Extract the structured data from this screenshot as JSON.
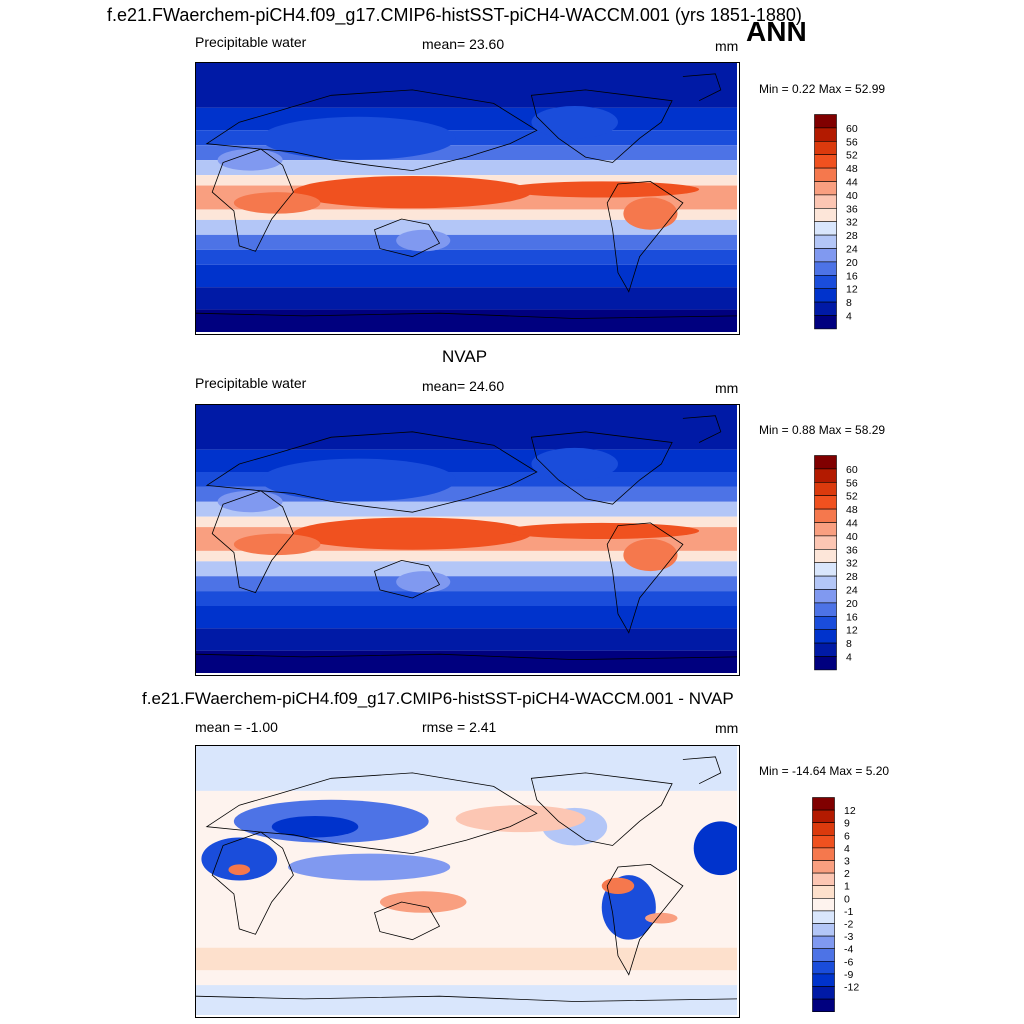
{
  "header": {
    "title": "f.e21.FWaerchem-piCH4.f09_g17.CMIP6-histSST-piCH4-WACCM.001 (yrs 1851-1880)",
    "season": "ANN"
  },
  "colors": {
    "scale": [
      "#00007f",
      "#001aa6",
      "#0033cc",
      "#1a4ddb",
      "#4d73e6",
      "#8099f0",
      "#b3c6f7",
      "#d9e6fc",
      "#fde6d9",
      "#fcc6b3",
      "#f99f80",
      "#f5784d",
      "#f0511f",
      "#db3a0d",
      "#b31a00",
      "#800000"
    ],
    "diff_scale": [
      "#00007f",
      "#001aa6",
      "#0033cc",
      "#1a4ddb",
      "#4d73e6",
      "#8099f0",
      "#b3c6f7",
      "#d9e6fc",
      "#fef3ee",
      "#fde0cc",
      "#fcc6b3",
      "#f99f80",
      "#f5784d",
      "#f0511f",
      "#db3a0d",
      "#b31a00",
      "#800000"
    ]
  },
  "panels": [
    {
      "heading": "",
      "left_label": "Precipitable water",
      "center_label": "mean=  23.60",
      "units": "mm",
      "minmax": "Min =   0.22 Max =  52.99",
      "colorbar": {
        "labels": [
          "60",
          "56",
          "52",
          "48",
          "44",
          "40",
          "36",
          "32",
          "28",
          "24",
          "20",
          "16",
          "12",
          "8",
          "4"
        ]
      }
    },
    {
      "heading": "NVAP",
      "left_label": "Precipitable water",
      "center_label": "mean=  24.60",
      "units": "mm",
      "minmax": "Min =   0.88 Max =  58.29",
      "colorbar": {
        "labels": [
          "60",
          "56",
          "52",
          "48",
          "44",
          "40",
          "36",
          "32",
          "28",
          "24",
          "20",
          "16",
          "12",
          "8",
          "4"
        ]
      }
    },
    {
      "heading": "f.e21.FWaerchem-piCH4.f09_g17.CMIP6-histSST-piCH4-WACCM.001 - NVAP",
      "left_label": "mean =  -1.00",
      "center_label": "rmse =   2.41",
      "units": "mm",
      "minmax": "Min = -14.64 Max =   5.20",
      "colorbar": {
        "labels": [
          "12",
          "9",
          "6",
          "4",
          "3",
          "2",
          "1",
          "0",
          "-1",
          "-2",
          "-3",
          "-4",
          "-6",
          "-9",
          "-12"
        ]
      }
    }
  ]
}
